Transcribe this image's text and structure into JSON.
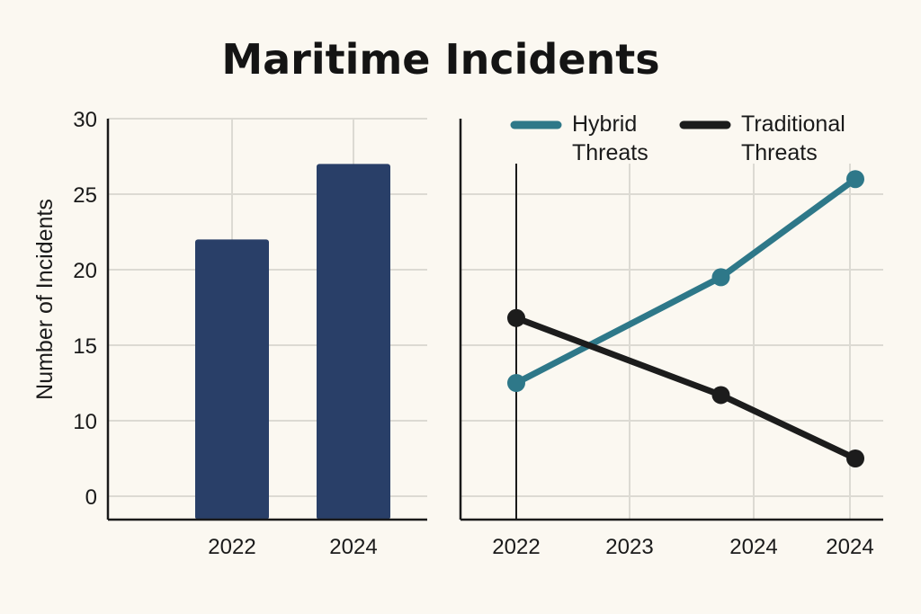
{
  "title": "Maritime Incidents",
  "colors": {
    "bar": "#293f68",
    "hybrid": "#2e7889",
    "traditional": "#1c1c1c"
  },
  "chart_data": [
    {
      "type": "bar",
      "ylabel": "Number of Incidents",
      "yticks": [
        "0",
        "10",
        "15",
        "20",
        "25",
        "30"
      ],
      "categories": [
        "2022",
        "2024"
      ],
      "values": [
        22,
        27
      ],
      "ylim": [
        5,
        30
      ],
      "grid": true
    },
    {
      "type": "line",
      "xticks": [
        "2022",
        "2023",
        "2024",
        "2024"
      ],
      "legend_position": "top",
      "grid": true,
      "series": [
        {
          "name": "Hybrid Threats",
          "name_lines": [
            "Hybrid",
            "Threats"
          ],
          "color_key": "hybrid",
          "points": [
            [
              2022,
              12.5
            ],
            [
              2023.75,
              19.5
            ],
            [
              2024.9,
              26
            ]
          ]
        },
        {
          "name": "Traditional Threats",
          "name_lines": [
            "Traditional",
            "Threats"
          ],
          "color_key": "traditional",
          "points": [
            [
              2022,
              16.8
            ],
            [
              2023.75,
              11.7
            ],
            [
              2024.9,
              7.5
            ]
          ]
        }
      ]
    }
  ]
}
